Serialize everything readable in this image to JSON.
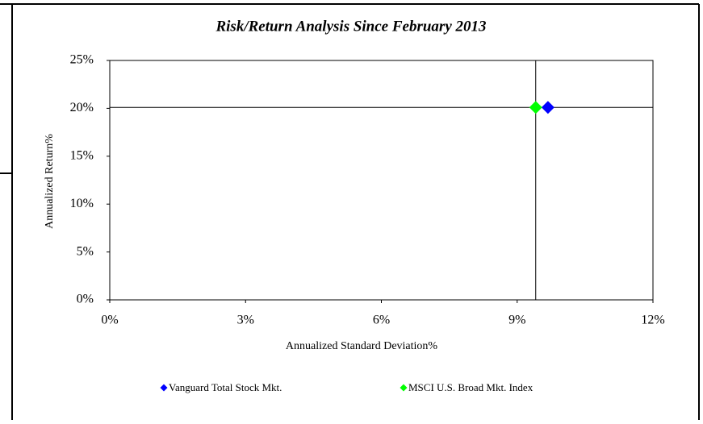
{
  "chart_data": {
    "type": "scatter",
    "title": "Risk/Return Analysis Since February 2013",
    "x_label": "Annualized Standard Deviation%",
    "y_label": "Annualized Return%",
    "xlim": [
      0,
      12
    ],
    "ylim": [
      0,
      25
    ],
    "xticks": [
      {
        "value": 0,
        "label": "0%"
      },
      {
        "value": 3,
        "label": "3%"
      },
      {
        "value": 6,
        "label": "6%"
      },
      {
        "value": 9,
        "label": "9%"
      },
      {
        "value": 12,
        "label": "12%"
      }
    ],
    "yticks": [
      {
        "value": 0,
        "label": "0%"
      },
      {
        "value": 5,
        "label": "5%"
      },
      {
        "value": 10,
        "label": "10%"
      },
      {
        "value": 15,
        "label": "15%"
      },
      {
        "value": 20,
        "label": "20%"
      },
      {
        "value": 25,
        "label": "25%"
      }
    ],
    "legend": "bottom",
    "series": [
      {
        "name": "Vanguard Total Stock Mkt.",
        "color": "#0000ff",
        "x": [
          9.68
        ],
        "values": [
          20.1
        ]
      },
      {
        "name": "MSCI U.S. Broad Mkt. Index",
        "color": "#00ff00",
        "x": [
          9.41
        ],
        "values": [
          20.1
        ]
      }
    ]
  }
}
